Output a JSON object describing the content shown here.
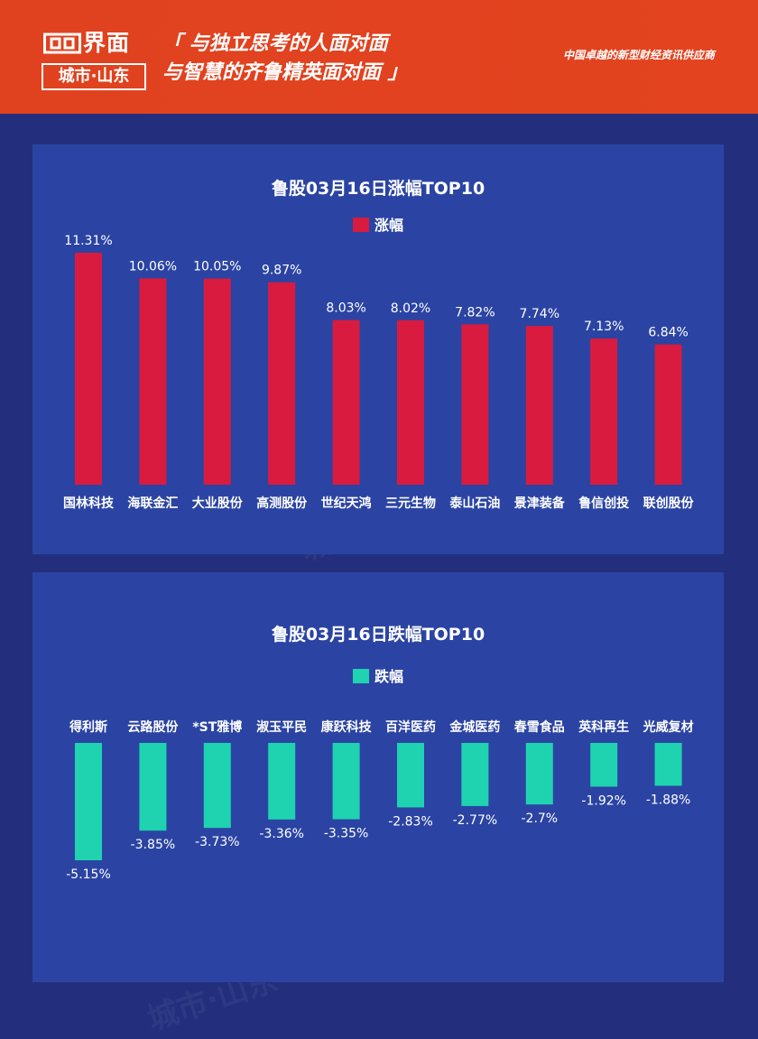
{
  "header": {
    "logo_main": "界面",
    "logo_sub": "城市·山东",
    "slogan_line1": "「 与独立思考的人面对面",
    "slogan_line2": "与智慧的齐鲁精英面对面 」",
    "tagline": "中国卓越的新型财经资讯供应商"
  },
  "colors": {
    "header_bg": "#e0421f",
    "page_bg": "#232f7d",
    "panel_bg": "#2b44a3",
    "rise_bar": "#d81b3f",
    "fall_bar": "#1fd3b1"
  },
  "chart_data": [
    {
      "type": "bar",
      "title": "鲁股03月16日涨幅TOP10",
      "legend": "涨幅",
      "categories": [
        "国林科技",
        "海联金汇",
        "大业股份",
        "高测股份",
        "世纪天鸿",
        "三元生物",
        "泰山石油",
        "景津装备",
        "鲁信创投",
        "联创股份"
      ],
      "values": [
        11.31,
        10.06,
        10.05,
        9.87,
        8.03,
        8.02,
        7.82,
        7.74,
        7.13,
        6.84
      ],
      "value_labels": [
        "11.31%",
        "10.06%",
        "10.05%",
        "9.87%",
        "8.03%",
        "8.02%",
        "7.82%",
        "7.74%",
        "7.13%",
        "6.84%"
      ],
      "ylim": [
        0,
        11.31
      ]
    },
    {
      "type": "bar",
      "title": "鲁股03月16日跌幅TOP10",
      "legend": "跌幅",
      "categories": [
        "得利斯",
        "云路股份",
        "*ST雅博",
        "淑玉平民",
        "康跃科技",
        "百洋医药",
        "金城医药",
        "春雪食品",
        "英科再生",
        "光威复材"
      ],
      "values": [
        -5.15,
        -3.85,
        -3.73,
        -3.36,
        -3.35,
        -2.83,
        -2.77,
        -2.7,
        -1.92,
        -1.88
      ],
      "value_labels": [
        "-5.15%",
        "-3.85%",
        "-3.73%",
        "-3.36%",
        "-3.35%",
        "-2.83%",
        "-2.77%",
        "-2.7%",
        "-1.92%",
        "-1.88%"
      ],
      "ylim": [
        -5.15,
        0
      ]
    }
  ]
}
